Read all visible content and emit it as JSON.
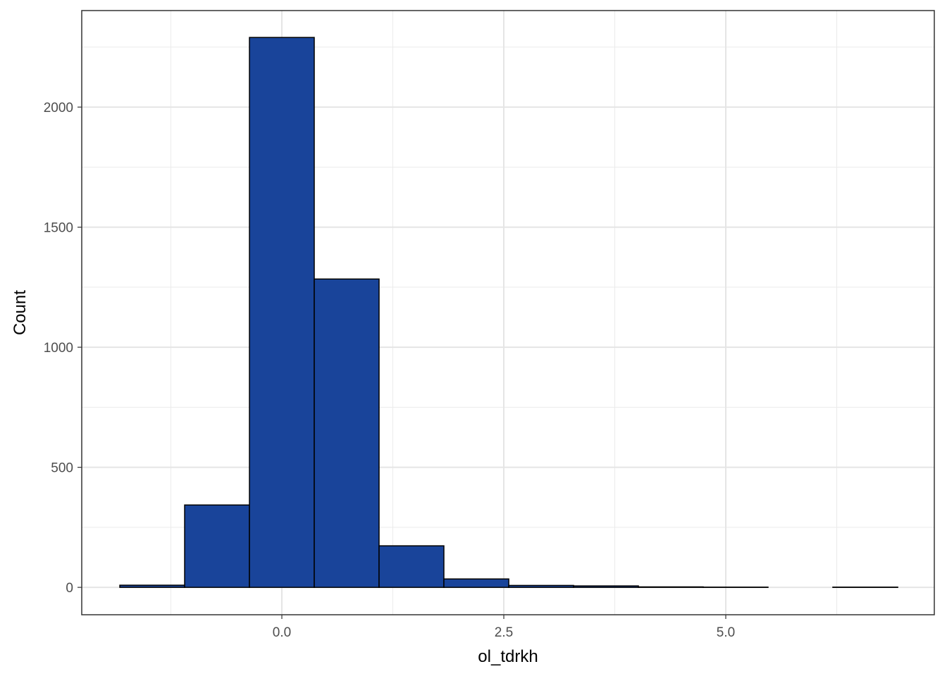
{
  "chart_data": {
    "type": "histogram",
    "x_label": "ol_tdrkh",
    "y_label": "Count",
    "bins": [
      -1.825,
      -1.095,
      -0.365,
      0.365,
      1.095,
      1.825,
      2.556,
      3.286,
      4.016,
      4.746,
      5.476,
      6.206,
      6.937
    ],
    "counts": [
      9,
      343,
      2290,
      1284,
      173,
      35,
      8,
      6,
      2,
      1,
      0,
      1
    ],
    "color": "#19449a",
    "edge_color": "#000000",
    "xlim": [
      -2.254,
      7.349
    ],
    "ylim": [
      -114,
      2402
    ],
    "xticks": [
      {
        "value": 0,
        "label": "0.0"
      },
      {
        "value": 2.5,
        "label": "2.5"
      },
      {
        "value": 5,
        "label": "5.0"
      }
    ],
    "yticks": [
      0,
      500,
      1000,
      1500,
      2000
    ],
    "x_minor_ticks": [
      -1.25,
      1.25,
      3.75,
      6.25
    ],
    "y_minor_ticks": [
      250,
      750,
      1250,
      1750,
      2250
    ],
    "grid": true
  }
}
